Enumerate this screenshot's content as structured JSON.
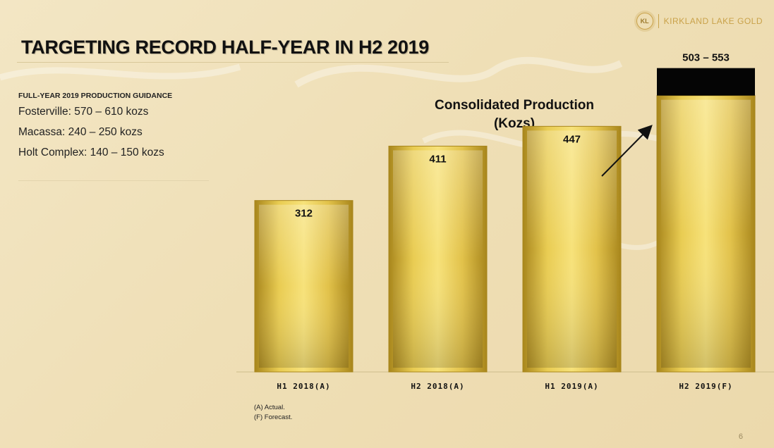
{
  "brand": {
    "logo_mark": "KL",
    "name": "KIRKLAND LAKE GOLD"
  },
  "title": "TARGETING RECORD HALF-YEAR IN H2 2019",
  "guidance": {
    "heading": "FULL-YEAR 2019 PRODUCTION GUIDANCE",
    "lines": [
      "Fosterville: 570 – 610 kozs",
      "Macassa: 240 – 250 kozs",
      "Holt Complex: 140 – 150 kozs"
    ]
  },
  "chart_data": {
    "type": "bar",
    "title": "Consolidated Production",
    "subtitle": "(Kozs)",
    "categories": [
      "H1 2018(A)",
      "H2 2018(A)",
      "H1 2019(A)",
      "H2 2019(F)"
    ],
    "values": [
      312,
      411,
      447,
      503
    ],
    "range_high": [
      null,
      null,
      null,
      553
    ],
    "data_labels": [
      "312",
      "411",
      "447",
      "503 – 553"
    ],
    "ylim": [
      0,
      600
    ],
    "grid": false,
    "colors": {
      "bar": "#d4b23a",
      "bar_light": "#f7e27a",
      "bar_dark": "#a8861c",
      "range": "#050505"
    }
  },
  "footnotes": [
    "(A)  Actual.",
    "(F) Forecast."
  ],
  "page_number": "6"
}
